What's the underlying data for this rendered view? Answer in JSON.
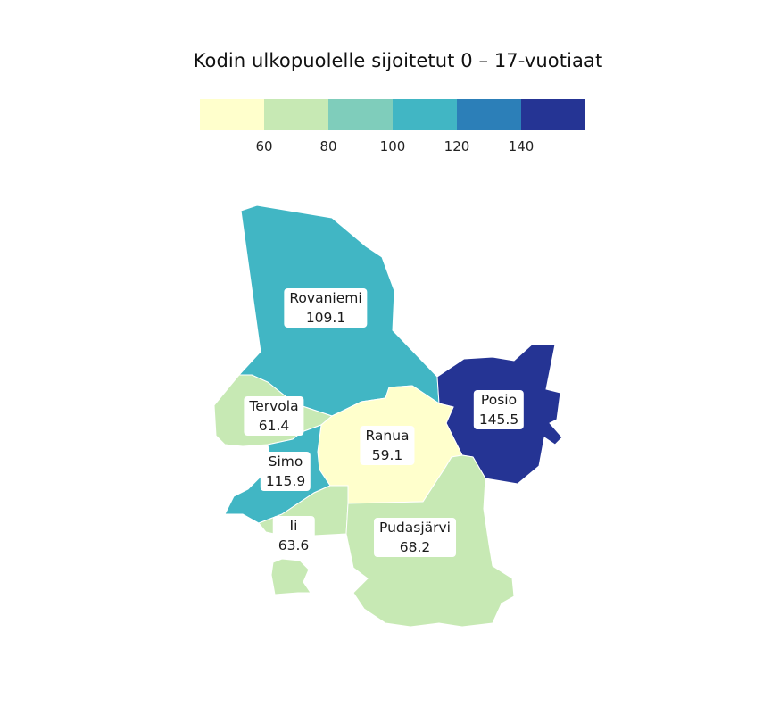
{
  "title": "Kodin ulkopuolelle sijoitetut 0 – 17-vuotiaat",
  "legend": {
    "bins": [
      {
        "color": "#ffffcc"
      },
      {
        "color": "#c7e9b4"
      },
      {
        "color": "#7fcdbb"
      },
      {
        "color": "#41b6c4"
      },
      {
        "color": "#2c7fb8"
      },
      {
        "color": "#253494"
      }
    ],
    "ticks": [
      "60",
      "80",
      "100",
      "120",
      "140"
    ]
  },
  "regions": [
    {
      "key": "rovaniemi",
      "name": "Rovaniemi",
      "value": "109.1",
      "color": "#41b6c4"
    },
    {
      "key": "posio",
      "name": "Posio",
      "value": "145.5",
      "color": "#253494"
    },
    {
      "key": "tervola",
      "name": "Tervola",
      "value": "61.4",
      "color": "#c7e9b4"
    },
    {
      "key": "ranua",
      "name": "Ranua",
      "value": "59.1",
      "color": "#ffffcc"
    },
    {
      "key": "simo",
      "name": "Simo",
      "value": "115.9",
      "color": "#41b6c4"
    },
    {
      "key": "ii",
      "name": "Ii",
      "value": "63.6",
      "color": "#c7e9b4"
    },
    {
      "key": "pudasjarvi",
      "name": "Pudasjärvi",
      "value": "68.2",
      "color": "#c7e9b4"
    }
  ]
}
